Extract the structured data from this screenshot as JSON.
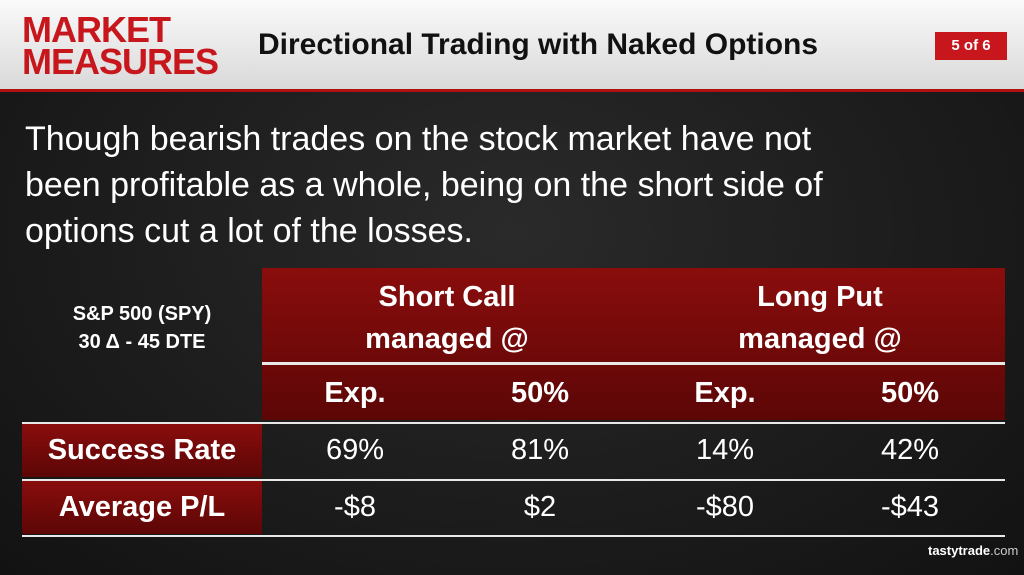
{
  "header": {
    "logo": [
      "MARKET",
      "MEASURES"
    ],
    "title": "Directional Trading with Naked Options",
    "page": "5 of 6"
  },
  "body": {
    "text": [
      "Though bearish trades on the stock market have not",
      "been profitable as a whole, being on the short side of",
      "options cut a lot of the losses."
    ]
  },
  "table": {
    "corner": [
      "S&P 500 (SPY)",
      "30 Δ - 45 DTE"
    ],
    "groups": [
      [
        "Short Call",
        "managed @"
      ],
      [
        "Long Put",
        "managed @"
      ]
    ],
    "subheaders": [
      "Exp.",
      "50%",
      "Exp.",
      "50%"
    ],
    "rows": [
      [
        "Success Rate",
        "69%",
        "81%",
        "14%",
        "42%"
      ],
      [
        "Average P/L",
        "-$8",
        "$2",
        "-$80",
        "-$43"
      ]
    ]
  },
  "footer": {
    "brand": "tastytrade",
    "suffix": ".com"
  }
}
